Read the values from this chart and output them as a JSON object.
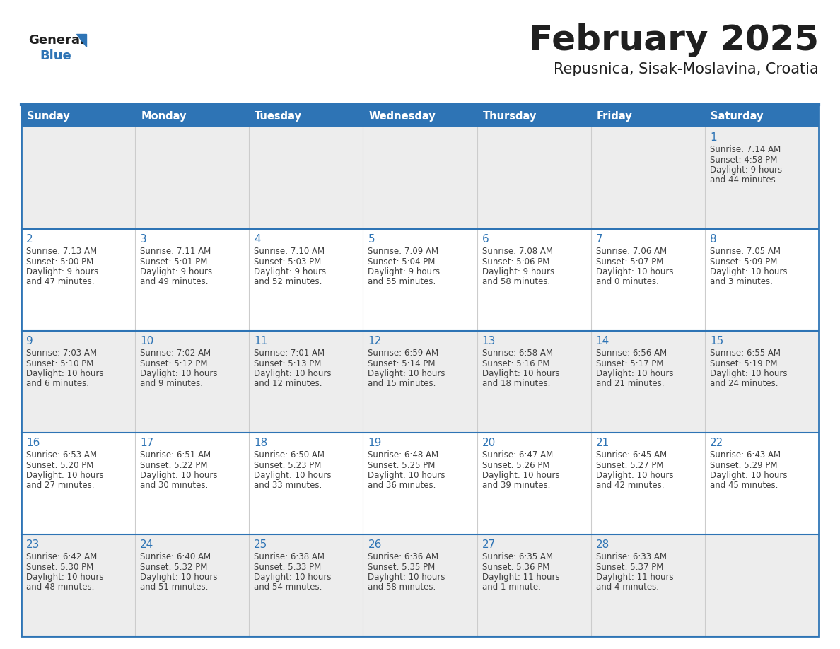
{
  "title": "February 2025",
  "subtitle": "Repusnica, Sisak-Moslavina, Croatia",
  "days_of_week": [
    "Sunday",
    "Monday",
    "Tuesday",
    "Wednesday",
    "Thursday",
    "Friday",
    "Saturday"
  ],
  "header_bg": "#2E74B5",
  "header_text": "#FFFFFF",
  "cell_bg_light": "#FFFFFF",
  "cell_bg_gray": "#EDEDED",
  "title_color": "#1F1F1F",
  "subtitle_color": "#1F1F1F",
  "day_number_color": "#2E74B5",
  "text_color": "#404040",
  "border_color": "#2E74B5",
  "divider_color": "#2E74B5",
  "vert_line_color": "#CCCCCC",
  "logo_general_color": "#1F1F1F",
  "logo_blue_color": "#2E74B5",
  "calendar": [
    [
      null,
      null,
      null,
      null,
      null,
      null,
      {
        "day": 1,
        "sunrise": "7:14 AM",
        "sunset": "4:58 PM",
        "daylight": "9 hours and 44 minutes."
      }
    ],
    [
      {
        "day": 2,
        "sunrise": "7:13 AM",
        "sunset": "5:00 PM",
        "daylight": "9 hours and 47 minutes."
      },
      {
        "day": 3,
        "sunrise": "7:11 AM",
        "sunset": "5:01 PM",
        "daylight": "9 hours and 49 minutes."
      },
      {
        "day": 4,
        "sunrise": "7:10 AM",
        "sunset": "5:03 PM",
        "daylight": "9 hours and 52 minutes."
      },
      {
        "day": 5,
        "sunrise": "7:09 AM",
        "sunset": "5:04 PM",
        "daylight": "9 hours and 55 minutes."
      },
      {
        "day": 6,
        "sunrise": "7:08 AM",
        "sunset": "5:06 PM",
        "daylight": "9 hours and 58 minutes."
      },
      {
        "day": 7,
        "sunrise": "7:06 AM",
        "sunset": "5:07 PM",
        "daylight": "10 hours and 0 minutes."
      },
      {
        "day": 8,
        "sunrise": "7:05 AM",
        "sunset": "5:09 PM",
        "daylight": "10 hours and 3 minutes."
      }
    ],
    [
      {
        "day": 9,
        "sunrise": "7:03 AM",
        "sunset": "5:10 PM",
        "daylight": "10 hours and 6 minutes."
      },
      {
        "day": 10,
        "sunrise": "7:02 AM",
        "sunset": "5:12 PM",
        "daylight": "10 hours and 9 minutes."
      },
      {
        "day": 11,
        "sunrise": "7:01 AM",
        "sunset": "5:13 PM",
        "daylight": "10 hours and 12 minutes."
      },
      {
        "day": 12,
        "sunrise": "6:59 AM",
        "sunset": "5:14 PM",
        "daylight": "10 hours and 15 minutes."
      },
      {
        "day": 13,
        "sunrise": "6:58 AM",
        "sunset": "5:16 PM",
        "daylight": "10 hours and 18 minutes."
      },
      {
        "day": 14,
        "sunrise": "6:56 AM",
        "sunset": "5:17 PM",
        "daylight": "10 hours and 21 minutes."
      },
      {
        "day": 15,
        "sunrise": "6:55 AM",
        "sunset": "5:19 PM",
        "daylight": "10 hours and 24 minutes."
      }
    ],
    [
      {
        "day": 16,
        "sunrise": "6:53 AM",
        "sunset": "5:20 PM",
        "daylight": "10 hours and 27 minutes."
      },
      {
        "day": 17,
        "sunrise": "6:51 AM",
        "sunset": "5:22 PM",
        "daylight": "10 hours and 30 minutes."
      },
      {
        "day": 18,
        "sunrise": "6:50 AM",
        "sunset": "5:23 PM",
        "daylight": "10 hours and 33 minutes."
      },
      {
        "day": 19,
        "sunrise": "6:48 AM",
        "sunset": "5:25 PM",
        "daylight": "10 hours and 36 minutes."
      },
      {
        "day": 20,
        "sunrise": "6:47 AM",
        "sunset": "5:26 PM",
        "daylight": "10 hours and 39 minutes."
      },
      {
        "day": 21,
        "sunrise": "6:45 AM",
        "sunset": "5:27 PM",
        "daylight": "10 hours and 42 minutes."
      },
      {
        "day": 22,
        "sunrise": "6:43 AM",
        "sunset": "5:29 PM",
        "daylight": "10 hours and 45 minutes."
      }
    ],
    [
      {
        "day": 23,
        "sunrise": "6:42 AM",
        "sunset": "5:30 PM",
        "daylight": "10 hours and 48 minutes."
      },
      {
        "day": 24,
        "sunrise": "6:40 AM",
        "sunset": "5:32 PM",
        "daylight": "10 hours and 51 minutes."
      },
      {
        "day": 25,
        "sunrise": "6:38 AM",
        "sunset": "5:33 PM",
        "daylight": "10 hours and 54 minutes."
      },
      {
        "day": 26,
        "sunrise": "6:36 AM",
        "sunset": "5:35 PM",
        "daylight": "10 hours and 58 minutes."
      },
      {
        "day": 27,
        "sunrise": "6:35 AM",
        "sunset": "5:36 PM",
        "daylight": "11 hours and 1 minute."
      },
      {
        "day": 28,
        "sunrise": "6:33 AM",
        "sunset": "5:37 PM",
        "daylight": "11 hours and 4 minutes."
      },
      null
    ]
  ]
}
